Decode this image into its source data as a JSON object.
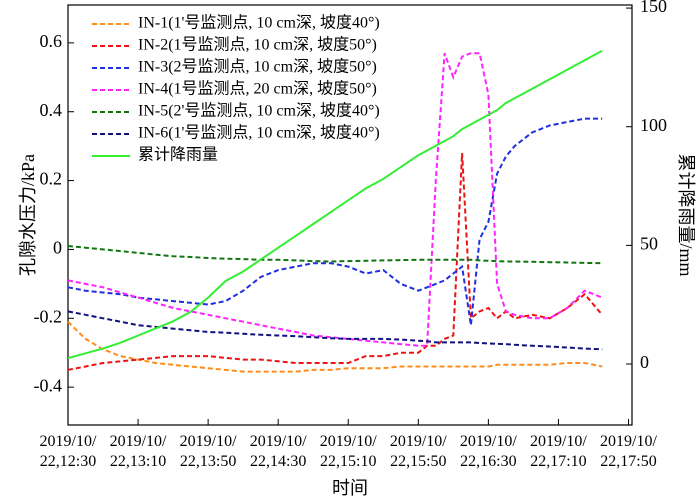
{
  "chart_data": {
    "type": "line",
    "xlabel": "时间",
    "ylabel": "孔隙水压力/kPa",
    "y2label": "累计降雨量/mm",
    "legend": "upper left",
    "x": [
      "2019/10/22,12:30",
      "2019/10/22,12:40",
      "2019/10/22,12:50",
      "2019/10/22,13:00",
      "2019/10/22,13:10",
      "2019/10/22,13:20",
      "2019/10/22,13:30",
      "2019/10/22,13:40",
      "2019/10/22,13:50",
      "2019/10/22,14:00",
      "2019/10/22,14:10",
      "2019/10/22,14:20",
      "2019/10/22,14:30",
      "2019/10/22,14:40",
      "2019/10/22,14:50",
      "2019/10/22,15:00",
      "2019/10/22,15:10",
      "2019/10/22,15:20",
      "2019/10/22,15:30",
      "2019/10/22,15:40",
      "2019/10/22,15:50",
      "2019/10/22,15:55",
      "2019/10/22,16:00",
      "2019/10/22,16:05",
      "2019/10/22,16:10",
      "2019/10/22,16:15",
      "2019/10/22,16:20",
      "2019/10/22,16:25",
      "2019/10/22,16:30",
      "2019/10/22,16:35",
      "2019/10/22,16:40",
      "2019/10/22,16:45",
      "2019/10/22,16:55",
      "2019/10/22,17:05",
      "2019/10/22,17:15",
      "2019/10/22,17:25",
      "2019/10/22,17:35"
    ],
    "xlim": [
      "2019/10/22,12:30",
      "2019/10/22,17:52"
    ],
    "xticks": [
      "2019/10/22,12:30",
      "2019/10/22,13:10",
      "2019/10/22,13:50",
      "2019/10/22,14:30",
      "2019/10/22,15:10",
      "2019/10/22,15:50",
      "2019/10/22,16:30",
      "2019/10/22,17:10",
      "2019/10/22,17:50"
    ],
    "ylim": [
      -0.51,
      0.71
    ],
    "yticks": [
      -0.4,
      -0.2,
      0,
      0.2,
      0.4,
      0.6
    ],
    "y2lim": [
      -25.7,
      151.3
    ],
    "y2ticks": [
      0,
      50,
      100,
      150
    ],
    "series": [
      {
        "name": "IN-1(1'号监测点, 10 cm深, 坡度40°)",
        "color": "#ff8c1a",
        "dashed": true,
        "values": [
          -0.21,
          -0.26,
          -0.29,
          -0.31,
          -0.32,
          -0.33,
          -0.335,
          -0.34,
          -0.345,
          -0.35,
          -0.355,
          -0.355,
          -0.355,
          -0.355,
          -0.35,
          -0.35,
          -0.345,
          -0.345,
          -0.345,
          -0.34,
          -0.34,
          -0.34,
          -0.34,
          -0.34,
          -0.34,
          -0.34,
          -0.34,
          -0.34,
          -0.34,
          -0.335,
          -0.335,
          -0.335,
          -0.335,
          -0.335,
          -0.33,
          -0.33,
          -0.34
        ]
      },
      {
        "name": "IN-2(1号监测点, 10 cm深, 坡度50°)",
        "color": "#ee1111",
        "dashed": true,
        "values": [
          -0.35,
          -0.34,
          -0.33,
          -0.325,
          -0.32,
          -0.315,
          -0.31,
          -0.31,
          -0.31,
          -0.315,
          -0.32,
          -0.32,
          -0.325,
          -0.33,
          -0.33,
          -0.33,
          -0.33,
          -0.31,
          -0.31,
          -0.3,
          -0.3,
          -0.28,
          -0.28,
          -0.26,
          -0.25,
          0.28,
          -0.2,
          -0.18,
          -0.17,
          -0.2,
          -0.18,
          -0.2,
          -0.19,
          -0.2,
          -0.17,
          -0.13,
          -0.19
        ]
      },
      {
        "name": "IN-3(2号监测点, 10 cm深, 坡度50°)",
        "color": "#1f2fe0",
        "dashed": true,
        "values": [
          -0.11,
          -0.12,
          -0.125,
          -0.13,
          -0.14,
          -0.145,
          -0.15,
          -0.155,
          -0.16,
          -0.15,
          -0.12,
          -0.08,
          -0.06,
          -0.05,
          -0.04,
          -0.04,
          -0.05,
          -0.07,
          -0.06,
          -0.1,
          -0.12,
          -0.11,
          -0.1,
          -0.09,
          -0.07,
          -0.05,
          -0.22,
          0.03,
          0.08,
          0.22,
          0.27,
          0.3,
          0.34,
          0.36,
          0.37,
          0.38,
          0.38
        ]
      },
      {
        "name": "IN-4(1号监测点, 20 cm深, 坡度50°)",
        "color": "#ff22ff",
        "dashed": true,
        "values": [
          -0.09,
          -0.1,
          -0.11,
          -0.125,
          -0.14,
          -0.155,
          -0.17,
          -0.18,
          -0.19,
          -0.2,
          -0.21,
          -0.22,
          -0.23,
          -0.24,
          -0.25,
          -0.255,
          -0.26,
          -0.265,
          -0.27,
          -0.275,
          -0.28,
          -0.28,
          0.2,
          0.57,
          0.5,
          0.56,
          0.57,
          0.57,
          0.45,
          -0.1,
          -0.18,
          -0.19,
          -0.2,
          -0.2,
          -0.17,
          -0.12,
          -0.14
        ]
      },
      {
        "name": "IN-5(2'号监测点, 10 cm深, 坡度40°)",
        "color": "#117711",
        "dashed": true,
        "values": [
          0.01,
          0.005,
          0,
          -0.005,
          -0.01,
          -0.015,
          -0.02,
          -0.022,
          -0.025,
          -0.027,
          -0.028,
          -0.03,
          -0.03,
          -0.032,
          -0.034,
          -0.035,
          -0.034,
          -0.033,
          -0.032,
          -0.031,
          -0.03,
          -0.03,
          -0.03,
          -0.03,
          -0.03,
          -0.03,
          -0.03,
          -0.032,
          -0.033,
          -0.034,
          -0.035,
          -0.035,
          -0.036,
          -0.037,
          -0.038,
          -0.039,
          -0.04
        ]
      },
      {
        "name": "IN-6(1'号监测点, 10 cm深, 坡度40°)",
        "color": "#111180",
        "dashed": true,
        "values": [
          -0.18,
          -0.19,
          -0.2,
          -0.21,
          -0.22,
          -0.225,
          -0.23,
          -0.235,
          -0.24,
          -0.242,
          -0.245,
          -0.248,
          -0.25,
          -0.252,
          -0.255,
          -0.258,
          -0.26,
          -0.26,
          -0.26,
          -0.262,
          -0.265,
          -0.267,
          -0.27,
          -0.27,
          -0.27,
          -0.27,
          -0.27,
          -0.272,
          -0.273,
          -0.274,
          -0.275,
          -0.277,
          -0.28,
          -0.282,
          -0.285,
          -0.288,
          -0.29
        ]
      },
      {
        "name": "累计降雨量",
        "color": "#33ee33",
        "dashed": false,
        "axis": "y2",
        "values": [
          2.5,
          4.5,
          6.5,
          9,
          12,
          15,
          18,
          22,
          28,
          35,
          39,
          44,
          49,
          54,
          59,
          64,
          69,
          74,
          78,
          83,
          88,
          90,
          92,
          94,
          96,
          99,
          101,
          103,
          105,
          107,
          110,
          112,
          116,
          120,
          124,
          128,
          132
        ]
      }
    ]
  }
}
